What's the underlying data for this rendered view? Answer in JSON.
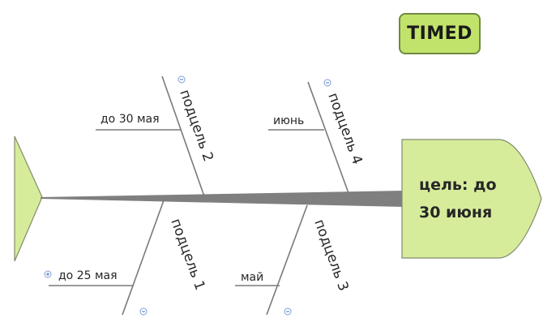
{
  "tag": {
    "label": "TIMED"
  },
  "head": {
    "line1": "цель: до",
    "line2": "30 июня"
  },
  "bones": [
    {
      "label": "подцель 2",
      "sub_label": "до 30 мая"
    },
    {
      "label": "подцель 4",
      "sub_label": "июнь"
    },
    {
      "label": "подцель 1",
      "sub_label": "до 25 мая"
    },
    {
      "label": "подцель 3",
      "sub_label": "май"
    }
  ],
  "colors": {
    "shape_fill": "#d7ec9b",
    "tag_fill": "#c2e36b",
    "bone": "#7a7a7a"
  }
}
